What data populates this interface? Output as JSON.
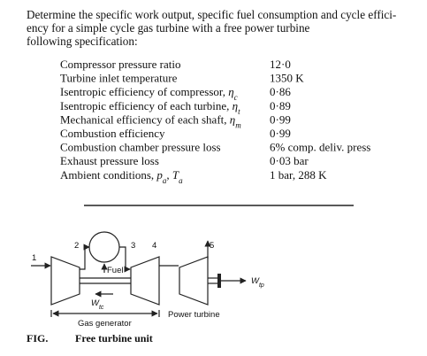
{
  "intro": [
    "Determine the specific work output, specific fuel consumption and cycle effici-",
    "ency for a simple cycle gas turbine with a free power turbine",
    "following specification:"
  ],
  "specs": [
    {
      "label": [
        {
          "text": "Compressor pressure ratio"
        }
      ],
      "value": "12·0"
    },
    {
      "label": [
        {
          "text": "Turbine inlet temperature"
        }
      ],
      "value": "1350 K"
    },
    {
      "label": [
        {
          "text": "Isentropic efficiency of compressor, "
        },
        {
          "text": "η",
          "style": "italic"
        },
        {
          "text": "c",
          "style": "sub"
        }
      ],
      "value": "0·86"
    },
    {
      "label": [
        {
          "text": "Isentropic efficiency of each turbine, "
        },
        {
          "text": "η",
          "style": "italic"
        },
        {
          "text": "t",
          "style": "sub"
        }
      ],
      "value": "0·89"
    },
    {
      "label": [
        {
          "text": "Mechanical efficiency of each shaft, "
        },
        {
          "text": "η",
          "style": "italic"
        },
        {
          "text": "m",
          "style": "sub"
        }
      ],
      "value": "0·99"
    },
    {
      "label": [
        {
          "text": "Combustion efficiency"
        }
      ],
      "value": "0·99"
    },
    {
      "label": [
        {
          "text": "Combustion chamber pressure loss"
        }
      ],
      "value": "6% comp. deliv. press"
    },
    {
      "label": [
        {
          "text": "Exhaust pressure loss"
        }
      ],
      "value": "0·03 bar"
    },
    {
      "label": [
        {
          "text": "Ambient conditions, "
        },
        {
          "text": "p",
          "style": "italic"
        },
        {
          "text": "a",
          "style": "sub"
        },
        {
          "text": ", "
        },
        {
          "text": "T",
          "style": "italic"
        },
        {
          "text": "a",
          "style": "sub"
        }
      ],
      "value": "1 bar, 288 K"
    }
  ],
  "diagram": {
    "stations": [
      "1",
      "2",
      "3",
      "4",
      "5"
    ],
    "fuel": "Fuel",
    "wtc": [
      {
        "text": "W",
        "style": "italic"
      },
      {
        "text": "tc",
        "style": "sub"
      }
    ],
    "wtp": [
      {
        "text": "W",
        "style": "italic"
      },
      {
        "text": "tp",
        "style": "sub"
      }
    ],
    "gas_generator": "Gas generator",
    "power_turbine": "Power turbine"
  },
  "caption": {
    "label": "FIG.",
    "title": "Free turbine unit"
  }
}
